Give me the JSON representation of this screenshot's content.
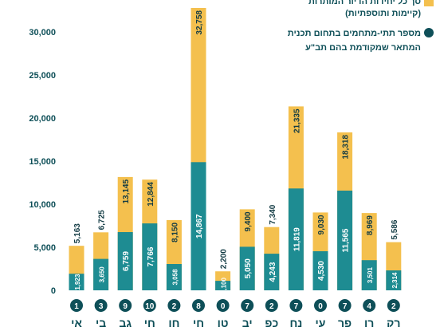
{
  "chart_data": {
    "type": "bar",
    "stacked": "overlay",
    "title": "",
    "xlabel": "",
    "ylabel": "",
    "ylim": [
      0,
      32758
    ],
    "yticks": [
      0,
      5000,
      10000,
      15000,
      20000,
      25000,
      30000
    ],
    "ytick_labels": [
      "0",
      "5,000",
      "10,000",
      "15,000",
      "20,000",
      "25,000",
      "30,000"
    ],
    "grid": false,
    "legend_position": "top-right",
    "categories": [
      "אי",
      "בי",
      "גב",
      "חי",
      "חו",
      "חי",
      "טו",
      "יב",
      "כפ",
      "נח",
      "עי",
      "פר",
      "רו",
      "רק"
    ],
    "badges": [
      1,
      3,
      9,
      10,
      2,
      8,
      0,
      7,
      2,
      7,
      0,
      7,
      4,
      2
    ],
    "series": [
      {
        "name": "סך כל יחידות הדיור המותרות (קיימות ותוספתיות)",
        "color": "#F4C04E",
        "values": [
          5163,
          6725,
          13145,
          12844,
          8150,
          32758,
          2200,
          9400,
          7340,
          21335,
          9030,
          18318,
          8969,
          5586
        ],
        "labels": [
          "5,163",
          "6,725",
          "13,145",
          "12,844",
          "8,150",
          "32,758",
          "2,200",
          "9,400",
          "7,340",
          "21,335",
          "9,030",
          "18,318",
          "8,969",
          "5,586"
        ]
      },
      {
        "name": "מספר תתי-מתחמים בתחום תכנית המתאר שמקודמת בהם תב\"ע",
        "color": "#1E8C92",
        "values": [
          1923,
          3650,
          6759,
          7766,
          3058,
          14867,
          1100,
          5050,
          4243,
          11819,
          4530,
          11565,
          3501,
          2314
        ],
        "labels": [
          "1,923",
          "3,650",
          "6,759",
          "7,766",
          "3,058",
          "14,867",
          "1,100",
          "5,050",
          "4,243",
          "11,819",
          "4,530",
          "11,565",
          "3,501",
          "2,314"
        ]
      }
    ],
    "legend": [
      {
        "lines": [
          "סך כל יחידות הדיור המותרות",
          "(קיימות ותוספתיות)"
        ],
        "shape": "square",
        "color": "#F4C04E"
      },
      {
        "lines": [
          "מספר תתי-מתחמים בתחום תכנית",
          "המתאר שמקודמת בהם תב\"ע"
        ],
        "shape": "circle",
        "color": "#0E4F58"
      }
    ],
    "colors": {
      "total": "#F4C04E",
      "subset": "#1E8C92",
      "badge": "#0E4F58",
      "axis_text": "#0E4F58",
      "value_text": "#123B44",
      "subset_text": "#FFFFFF"
    }
  }
}
